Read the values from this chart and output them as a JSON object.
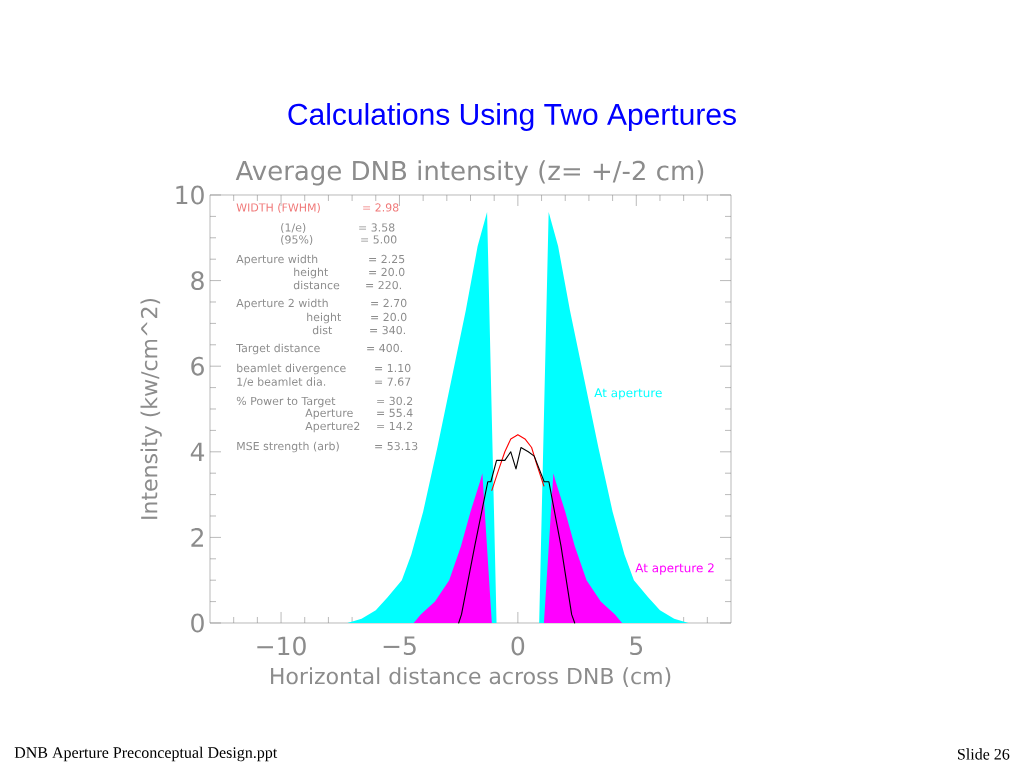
{
  "chart_data": {
    "type": "area",
    "title": "Calculations Using Two Apertures",
    "subtitle": "Average DNB intensity (z= +/-2 cm)",
    "xlabel": "Horizontal distance across DNB (cm)",
    "ylabel": "Intensity (kw/cm^2)",
    "xlim": [
      -13,
      9
    ],
    "xticks": [
      {
        "value": -12,
        "label": null
      },
      {
        "value": -11,
        "label": null
      },
      {
        "value": -10,
        "label": "−10"
      },
      {
        "value": -9,
        "label": null
      },
      {
        "value": -8,
        "label": null
      },
      {
        "value": -7,
        "label": null
      },
      {
        "value": -6,
        "label": null
      },
      {
        "value": -5,
        "label": "−5"
      },
      {
        "value": -4,
        "label": null
      },
      {
        "value": -3,
        "label": null
      },
      {
        "value": -2,
        "label": null
      },
      {
        "value": -1,
        "label": null
      },
      0,
      {
        "value": 1,
        "label": null
      },
      {
        "value": 2,
        "label": null
      },
      {
        "value": 3,
        "label": null
      },
      {
        "value": 4,
        "label": null
      },
      5,
      {
        "value": 6,
        "label": null
      },
      {
        "value": 7,
        "label": null
      },
      {
        "value": 8,
        "label": null
      }
    ],
    "ylim": [
      0,
      10
    ],
    "yticks": [
      0,
      {
        "value": 0.5,
        "label": null
      },
      {
        "value": 1,
        "label": null
      },
      {
        "value": 1.5,
        "label": null
      },
      2,
      {
        "value": 2.5,
        "label": null
      },
      {
        "value": 3,
        "label": null
      },
      {
        "value": 3.5,
        "label": null
      },
      4,
      {
        "value": 4.5,
        "label": null
      },
      {
        "value": 5,
        "label": null
      },
      {
        "value": 5.5,
        "label": null
      },
      6,
      {
        "value": 6.5,
        "label": null
      },
      {
        "value": 7,
        "label": null
      },
      {
        "value": 7.5,
        "label": null
      },
      8,
      {
        "value": 8.5,
        "label": null
      },
      {
        "value": 9,
        "label": null
      },
      {
        "value": 9.5,
        "label": null
      },
      10
    ],
    "series": [
      {
        "name": "At aperture",
        "color": "#00ffff",
        "x": [
          -13,
          -7.2,
          -6.6,
          -6,
          -5.5,
          -4.9,
          -4.5,
          -4,
          -3.4,
          -2.8,
          -2.2,
          -1.7,
          -1.3,
          -0.9,
          0.9,
          1.3,
          1.7,
          2.2,
          2.8,
          3.4,
          4,
          4.5,
          4.9,
          5.5,
          6,
          6.6,
          7.2,
          9
        ],
        "values": [
          0,
          0,
          0.1,
          0.3,
          0.6,
          1.0,
          1.6,
          2.6,
          4.1,
          5.7,
          7.3,
          8.8,
          9.6,
          0,
          0,
          9.6,
          8.8,
          7.3,
          5.7,
          4.1,
          2.6,
          1.6,
          1.0,
          0.6,
          0.3,
          0.1,
          0,
          0
        ]
      },
      {
        "name": "At aperture 2",
        "color": "#ff00ff",
        "x": [
          -13,
          -4.4,
          -4.1,
          -3.5,
          -2.9,
          -2.4,
          -2,
          -1.6,
          -1.5,
          -1.1,
          1.1,
          1.5,
          1.6,
          2,
          2.4,
          2.9,
          3.5,
          4.1,
          4.4,
          9
        ],
        "values": [
          0,
          0,
          0.2,
          0.5,
          1.0,
          1.8,
          2.6,
          3.3,
          3.5,
          0,
          0,
          3.5,
          3.3,
          2.6,
          1.8,
          1.0,
          0.5,
          0.2,
          0,
          0
        ]
      },
      {
        "color": "#ff0000",
        "type": "line",
        "x": [
          -1.1,
          -0.8,
          -0.55,
          -0.3,
          0,
          0.3,
          0.58,
          0.8,
          1.1
        ],
        "values": [
          3.1,
          3.6,
          4.0,
          4.3,
          4.4,
          4.3,
          4.1,
          3.7,
          3.2
        ]
      },
      {
        "color": "#000000",
        "type": "line",
        "x": [
          -2.5,
          -2.38,
          -1.82,
          -1.27,
          -1.14,
          -0.9,
          -0.55,
          -0.3,
          -0.08,
          0.13,
          0.44,
          0.69,
          1.11,
          1.31,
          1.82,
          2.27,
          2.4
        ],
        "values": [
          0,
          0.2,
          1.8,
          3.3,
          3.3,
          3.8,
          3.8,
          4.0,
          3.6,
          4.1,
          4.0,
          3.9,
          3.3,
          3.3,
          1.8,
          0.2,
          0
        ]
      }
    ],
    "annotations": [
      "WIDTH (FWHM) = 2.98",
      "(1/e) = 3.58",
      "(95%) = 5.00",
      "Aperture width = 2.25",
      "height = 20.0",
      "distance = 220.",
      "Aperture 2 width = 2.70",
      "height = 20.0",
      "dist = 340.",
      "Target distance = 400.",
      "beamlet divergence = 1.10",
      "1/e beamlet dia. = 7.67",
      "% Power to Target = 30.2",
      "Aperture = 55.4",
      "Aperture2 = 14.2",
      "MSE strength (arb) = 53.13",
      "DNB Aperture Preconceptual Design.ppt",
      "Slide 26"
    ]
  }
}
